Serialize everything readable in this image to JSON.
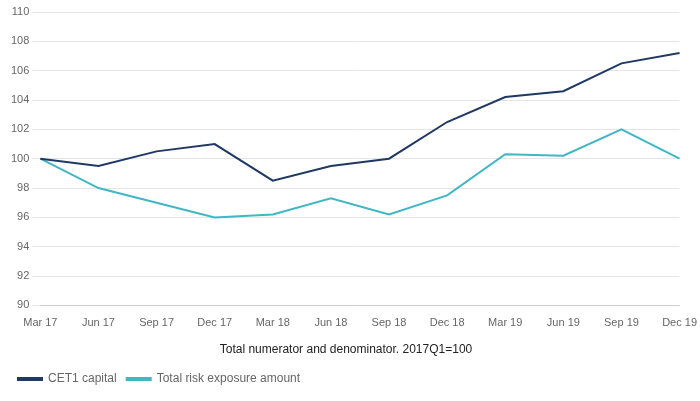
{
  "chart_data": {
    "type": "line",
    "subtitle": "Total numerator and denominator. 2017Q1=100",
    "categories": [
      "Mar 17",
      "Jun 17",
      "Sep 17",
      "Dec 17",
      "Mar 18",
      "Jun 18",
      "Sep 18",
      "Dec 18",
      "Mar 19",
      "Jun 19",
      "Sep 19",
      "Dec 19"
    ],
    "series": [
      {
        "name": "CET1 capital",
        "color": "#1f3864",
        "values": [
          100.0,
          99.5,
          100.5,
          101.0,
          98.5,
          99.5,
          100.0,
          102.5,
          104.2,
          104.6,
          106.5,
          107.2
        ]
      },
      {
        "name": "Total risk exposure amount",
        "color": "#41b6c4",
        "values": [
          100.0,
          98.0,
          97.0,
          96.0,
          96.2,
          97.3,
          96.2,
          97.5,
          100.3,
          100.2,
          102.0,
          100.0
        ]
      }
    ],
    "ylim": [
      90,
      110
    ],
    "yticks": [
      90,
      92,
      94,
      96,
      98,
      100,
      102,
      104,
      106,
      108,
      110
    ],
    "grid": true,
    "legend": "bottom"
  }
}
